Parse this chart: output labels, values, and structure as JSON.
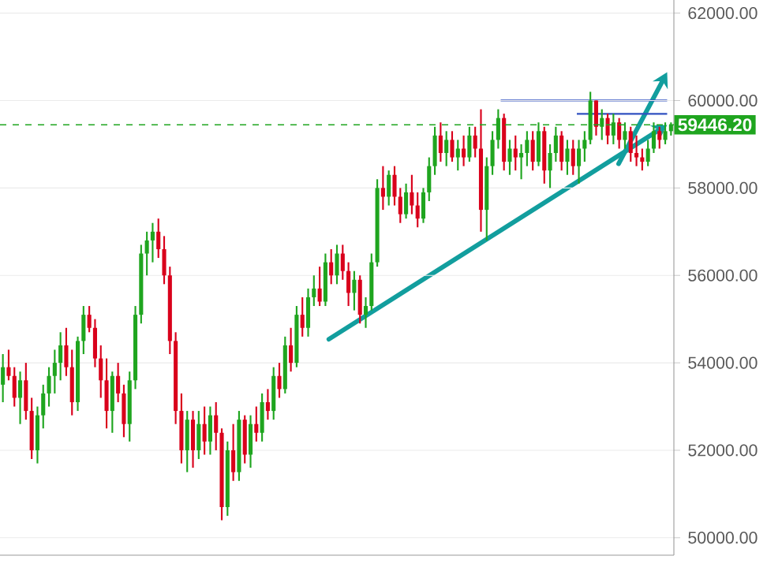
{
  "chart_data": {
    "type": "candlestick",
    "categories": [
      null,
      null,
      null,
      null,
      null,
      null,
      null,
      null,
      null,
      null,
      null,
      null,
      null,
      null,
      null,
      null,
      null,
      null,
      null,
      null,
      null,
      null,
      null,
      null,
      null,
      null,
      null,
      null,
      null,
      null,
      null,
      null,
      null,
      null,
      null,
      null,
      null,
      null,
      null,
      null,
      null,
      null,
      null,
      null,
      null,
      null,
      null,
      null,
      null,
      null,
      null,
      null,
      null,
      null,
      null,
      null,
      null,
      null,
      null,
      null,
      null,
      null,
      null,
      null,
      null,
      null,
      null,
      null,
      null,
      null,
      null,
      null,
      null,
      null,
      null,
      null,
      null,
      null,
      null,
      null,
      null,
      null,
      null,
      null,
      null,
      null,
      null,
      null,
      null,
      null,
      null,
      null,
      null,
      null,
      null,
      null,
      null,
      null,
      null,
      null,
      null,
      null,
      null,
      null,
      null,
      null,
      null,
      null,
      null,
      null,
      null,
      null,
      null,
      null,
      null,
      null,
      null
    ],
    "ohlc": [
      [
        53500,
        54200,
        53100,
        53900
      ],
      [
        53900,
        54300,
        53600,
        53700
      ],
      [
        53700,
        53900,
        53000,
        53200
      ],
      [
        53200,
        53800,
        52600,
        53600
      ],
      [
        53600,
        54000,
        52700,
        52900
      ],
      [
        52900,
        53200,
        51800,
        52000
      ],
      [
        52000,
        53000,
        51700,
        52800
      ],
      [
        52800,
        53500,
        52500,
        53300
      ],
      [
        53300,
        53900,
        53000,
        53700
      ],
      [
        53700,
        54300,
        53300,
        54000
      ],
      [
        54000,
        54700,
        53600,
        54400
      ],
      [
        54400,
        54800,
        53700,
        53900
      ],
      [
        53900,
        54300,
        52800,
        53100
      ],
      [
        53100,
        54600,
        52900,
        54500
      ],
      [
        54500,
        55300,
        54200,
        55100
      ],
      [
        55100,
        55300,
        54700,
        54800
      ],
      [
        54800,
        55000,
        53900,
        54100
      ],
      [
        54100,
        54400,
        53200,
        53600
      ],
      [
        53600,
        54100,
        52500,
        52900
      ],
      [
        52900,
        53800,
        52400,
        53700
      ],
      [
        53700,
        54000,
        53100,
        53300
      ],
      [
        53300,
        53500,
        52300,
        52600
      ],
      [
        52600,
        53800,
        52200,
        53600
      ],
      [
        53600,
        55300,
        53400,
        55100
      ],
      [
        55100,
        56700,
        54900,
        56500
      ],
      [
        56500,
        57000,
        56000,
        56800
      ],
      [
        56800,
        57200,
        56300,
        57000
      ],
      [
        57000,
        57300,
        56400,
        56600
      ],
      [
        56600,
        56900,
        55800,
        56000
      ],
      [
        56000,
        56200,
        54200,
        54500
      ],
      [
        54500,
        54700,
        52600,
        52900
      ],
      [
        52900,
        53300,
        51700,
        52000
      ],
      [
        52000,
        52900,
        51500,
        52700
      ],
      [
        52700,
        52900,
        51600,
        52000
      ],
      [
        52000,
        52900,
        51800,
        52600
      ],
      [
        52600,
        53000,
        51900,
        52200
      ],
      [
        52200,
        53000,
        51900,
        52800
      ],
      [
        52800,
        53100,
        52000,
        52400
      ],
      [
        52400,
        52500,
        50400,
        50700
      ],
      [
        50700,
        52200,
        50500,
        52000
      ],
      [
        52000,
        52600,
        51300,
        51500
      ],
      [
        51500,
        52900,
        51300,
        52700
      ],
      [
        52700,
        52800,
        51700,
        51900
      ],
      [
        51900,
        52800,
        51600,
        52600
      ],
      [
        52600,
        53000,
        52200,
        52400
      ],
      [
        52400,
        53300,
        52200,
        53100
      ],
      [
        53100,
        53400,
        52700,
        52900
      ],
      [
        52900,
        53900,
        52700,
        53700
      ],
      [
        53700,
        54000,
        53200,
        53400
      ],
      [
        53400,
        54600,
        53300,
        54400
      ],
      [
        54400,
        54800,
        53800,
        54000
      ],
      [
        54000,
        55300,
        53900,
        55100
      ],
      [
        55100,
        55500,
        54600,
        54800
      ],
      [
        54800,
        55700,
        54600,
        55500
      ],
      [
        55500,
        56000,
        55300,
        55700
      ],
      [
        55700,
        56200,
        55300,
        55400
      ],
      [
        55400,
        56500,
        55300,
        56300
      ],
      [
        56300,
        56600,
        55800,
        56000
      ],
      [
        56000,
        56700,
        55800,
        56500
      ],
      [
        56500,
        56700,
        55900,
        56100
      ],
      [
        56100,
        56300,
        55300,
        55600
      ],
      [
        55600,
        56100,
        55200,
        55900
      ],
      [
        55900,
        56000,
        54900,
        55100
      ],
      [
        55100,
        55500,
        54800,
        55300
      ],
      [
        55300,
        56500,
        55200,
        56300
      ],
      [
        56300,
        58200,
        56200,
        58000
      ],
      [
        58000,
        58500,
        57500,
        57800
      ],
      [
        57800,
        58400,
        57600,
        58300
      ],
      [
        58300,
        58500,
        57600,
        57800
      ],
      [
        57800,
        58000,
        57200,
        57400
      ],
      [
        57400,
        58100,
        57300,
        57900
      ],
      [
        57900,
        58300,
        57400,
        57600
      ],
      [
        57600,
        57900,
        57100,
        57300
      ],
      [
        57300,
        58000,
        57200,
        57900
      ],
      [
        57900,
        58700,
        57700,
        58500
      ],
      [
        58500,
        59400,
        58300,
        59200
      ],
      [
        59200,
        59500,
        58600,
        58800
      ],
      [
        58800,
        59300,
        58500,
        59100
      ],
      [
        59100,
        59300,
        58600,
        58700
      ],
      [
        58700,
        59100,
        58400,
        58900
      ],
      [
        58900,
        59200,
        58500,
        58700
      ],
      [
        58700,
        59400,
        58600,
        59200
      ],
      [
        59200,
        59400,
        58700,
        58900
      ],
      [
        58900,
        59800,
        57000,
        57500
      ],
      [
        57500,
        58700,
        56800,
        58500
      ],
      [
        58500,
        59300,
        58300,
        59100
      ],
      [
        59100,
        59800,
        58900,
        59600
      ],
      [
        59600,
        59700,
        58400,
        58600
      ],
      [
        58600,
        59100,
        58300,
        58900
      ],
      [
        58900,
        59200,
        58400,
        58700
      ],
      [
        58700,
        59000,
        58200,
        58800
      ],
      [
        58800,
        59300,
        58500,
        59100
      ],
      [
        59100,
        59300,
        58400,
        58600
      ],
      [
        58600,
        59500,
        58500,
        59300
      ],
      [
        59300,
        59400,
        58100,
        58400
      ],
      [
        58400,
        59000,
        58000,
        58800
      ],
      [
        58800,
        59400,
        58600,
        59200
      ],
      [
        59200,
        59300,
        58400,
        58600
      ],
      [
        58600,
        59100,
        58300,
        58900
      ],
      [
        58900,
        59100,
        58300,
        58500
      ],
      [
        58500,
        59100,
        58100,
        58900
      ],
      [
        58900,
        59300,
        58600,
        59100
      ],
      [
        59100,
        60200,
        59000,
        60000
      ],
      [
        60000,
        60000,
        59200,
        59400
      ],
      [
        59400,
        59800,
        59100,
        59600
      ],
      [
        59600,
        59700,
        59000,
        59200
      ],
      [
        59200,
        59700,
        59000,
        59500
      ],
      [
        59500,
        59600,
        58900,
        59100
      ],
      [
        59100,
        59500,
        58900,
        59300
      ],
      [
        59300,
        59400,
        58600,
        58800
      ],
      [
        58800,
        59200,
        58500,
        58700
      ],
      [
        58700,
        58900,
        58400,
        58600
      ],
      [
        58600,
        59100,
        58500,
        58900
      ],
      [
        58900,
        59500,
        58800,
        59300
      ],
      [
        59300,
        59400,
        58900,
        59100
      ],
      [
        59100,
        59500,
        59000,
        59300
      ],
      [
        59300,
        59500,
        59200,
        59446.2
      ]
    ],
    "colors": [
      "#1fa51f",
      "#d9001b",
      "#d9001b",
      "#1fa51f",
      "#d9001b",
      "#d9001b",
      "#1fa51f",
      "#1fa51f",
      "#1fa51f",
      "#1fa51f",
      "#1fa51f",
      "#d9001b",
      "#d9001b",
      "#1fa51f",
      "#1fa51f",
      "#d9001b",
      "#d9001b",
      "#d9001b",
      "#d9001b",
      "#1fa51f",
      "#d9001b",
      "#d9001b",
      "#1fa51f",
      "#1fa51f",
      "#1fa51f",
      "#1fa51f",
      "#1fa51f",
      "#d9001b",
      "#d9001b",
      "#d9001b",
      "#d9001b",
      "#d9001b",
      "#1fa51f",
      "#d9001b",
      "#1fa51f",
      "#d9001b",
      "#1fa51f",
      "#d9001b",
      "#d9001b",
      "#1fa51f",
      "#d9001b",
      "#1fa51f",
      "#d9001b",
      "#1fa51f",
      "#d9001b",
      "#1fa51f",
      "#d9001b",
      "#1fa51f",
      "#d9001b",
      "#1fa51f",
      "#d9001b",
      "#1fa51f",
      "#d9001b",
      "#1fa51f",
      "#1fa51f",
      "#d9001b",
      "#1fa51f",
      "#d9001b",
      "#1fa51f",
      "#d9001b",
      "#d9001b",
      "#1fa51f",
      "#d9001b",
      "#1fa51f",
      "#1fa51f",
      "#1fa51f",
      "#d9001b",
      "#1fa51f",
      "#d9001b",
      "#d9001b",
      "#1fa51f",
      "#d9001b",
      "#d9001b",
      "#1fa51f",
      "#1fa51f",
      "#1fa51f",
      "#d9001b",
      "#1fa51f",
      "#d9001b",
      "#1fa51f",
      "#d9001b",
      "#1fa51f",
      "#d9001b",
      "#d9001b",
      "#1fa51f",
      "#1fa51f",
      "#1fa51f",
      "#d9001b",
      "#1fa51f",
      "#d9001b",
      "#1fa51f",
      "#1fa51f",
      "#d9001b",
      "#1fa51f",
      "#d9001b",
      "#1fa51f",
      "#1fa51f",
      "#d9001b",
      "#1fa51f",
      "#d9001b",
      "#1fa51f",
      "#1fa51f",
      "#1fa51f",
      "#d9001b",
      "#1fa51f",
      "#d9001b",
      "#1fa51f",
      "#d9001b",
      "#1fa51f",
      "#d9001b",
      "#d9001b",
      "#d9001b",
      "#1fa51f",
      "#1fa51f",
      "#d9001b",
      "#1fa51f",
      "#1fa51f"
    ],
    "ylim": [
      49600,
      62300
    ],
    "yticks": [
      {
        "value": 50000,
        "label": "50000.00"
      },
      {
        "value": 52000,
        "label": "52000.00"
      },
      {
        "value": 54000,
        "label": "54000.00"
      },
      {
        "value": 56000,
        "label": "56000.00"
      },
      {
        "value": 58000,
        "label": "58000.00"
      },
      {
        "value": 60000,
        "label": "60000.00"
      },
      {
        "value": 62000,
        "label": "62000.00"
      }
    ],
    "grid": "y",
    "tick_labels": "y",
    "ref_lines": [
      {
        "axis": "y",
        "value": 59446.2,
        "label": "59446.20",
        "color": "#1fa51f",
        "line_style": "dashed"
      }
    ]
  }
}
